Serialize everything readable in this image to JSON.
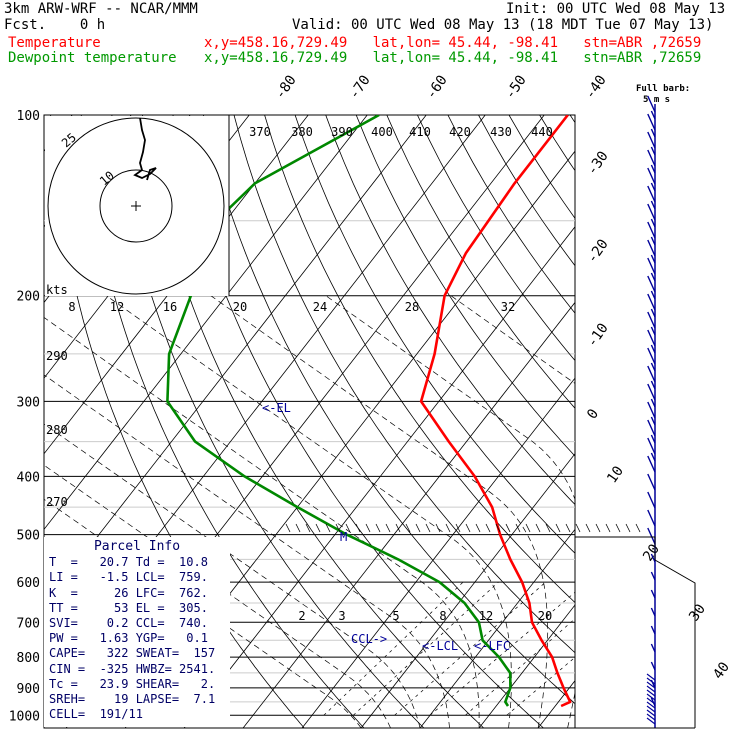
{
  "header": {
    "model": "3km ARW-WRF -- NCAR/MMM",
    "fcst": "Fcst.    0 h",
    "init": "Init: 00 UTC Wed 08 May 13",
    "valid": "Valid: 00 UTC Wed 08 May 13 (18 MDT Tue 07 May 13)",
    "temp_label": "Temperature",
    "dew_label": "Dewpoint temperature",
    "temp_loc": "x,y=458.16,729.49   lat,lon= 45.44, -98.41   stn=ABR ,72659",
    "dew_loc": "x,y=458.16,729.49   lat,lon= 45.44, -98.41   stn=ABR ,72659",
    "full_barb": "Full barb:",
    "full_barb_units": "5 m s"
  },
  "colors": {
    "temperature": "#ff0000",
    "dewpoint": "#008800",
    "annotation": "#000099",
    "theta_e": "#000000"
  },
  "chart_data": {
    "type": "line",
    "title": "Skew-T log-P sounding",
    "pressure_levels": [
      "100",
      "200",
      "300",
      "400",
      "500",
      "600",
      "700",
      "800",
      "900",
      "1000"
    ],
    "isotherm_labels": [
      "-80",
      "-70",
      "-60",
      "-50",
      "-40",
      "-30",
      "-20",
      "-10",
      "0",
      "10",
      "20",
      "30",
      "40"
    ],
    "theta_e_labels": [
      "370",
      "380",
      "390",
      "400",
      "410",
      "420",
      "430",
      "440"
    ],
    "left_theta_labels": [
      "290",
      "280",
      "270"
    ],
    "mixing_ratio_labels": [
      "2",
      "3",
      "5",
      "8",
      "12",
      "20"
    ],
    "hodograph": {
      "speed_label": "kts",
      "ring_labels": [
        "25",
        "10"
      ],
      "speed_ticks": [
        "8",
        "12",
        "16",
        "20",
        "24",
        "28",
        "32"
      ]
    },
    "annotations": {
      "el": "<-EL",
      "lcl": "<-LCL",
      "lfc": "<-LFC",
      "ccl": "CCL->",
      "m": "M"
    },
    "series": [
      {
        "name": "Temperature",
        "points": [
          [
            100,
            -56
          ],
          [
            130,
            -56
          ],
          [
            170,
            -55
          ],
          [
            200,
            -53
          ],
          [
            250,
            -47
          ],
          [
            300,
            -43
          ],
          [
            350,
            -33
          ],
          [
            400,
            -24
          ],
          [
            450,
            -17
          ],
          [
            500,
            -12
          ],
          [
            550,
            -7
          ],
          [
            600,
            -2
          ],
          [
            650,
            2
          ],
          [
            700,
            5
          ],
          [
            750,
            9
          ],
          [
            800,
            13
          ],
          [
            850,
            16
          ],
          [
            900,
            19
          ],
          [
            950,
            22
          ],
          [
            965,
            21
          ]
        ]
      },
      {
        "name": "Dewpoint temperature",
        "points": [
          [
            100,
            -88
          ],
          [
            130,
            -100
          ],
          [
            170,
            -103
          ],
          [
            200,
            -96
          ],
          [
            250,
            -92
          ],
          [
            300,
            -86
          ],
          [
            350,
            -76
          ],
          [
            400,
            -63
          ],
          [
            450,
            -50
          ],
          [
            500,
            -38
          ],
          [
            550,
            -26
          ],
          [
            600,
            -16
          ],
          [
            650,
            -9
          ],
          [
            700,
            -4
          ],
          [
            750,
            -1
          ],
          [
            800,
            4
          ],
          [
            850,
            8
          ],
          [
            900,
            10
          ],
          [
            950,
            11
          ],
          [
            965,
            12
          ]
        ]
      }
    ],
    "ylim": [
      1000,
      100
    ],
    "xlim": [
      -40,
      50
    ]
  },
  "parcel": {
    "title": "Parcel Info",
    "rows": [
      "T  =   20.7 Td =  10.8",
      "LI =   -1.5 LCL=  759.",
      "K  =     26 LFC=  762.",
      "TT =     53 EL =  305.",
      "SVI=    0.2 CCL=  740.",
      "PW =   1.63 YGP=   0.1",
      "CAPE=   322 SWEAT=  157",
      "CIN =  -325 HWBZ= 2541.",
      "Tc =   23.9 SHEAR=   2.",
      "SREH=    19 LAPSE=  7.1",
      "CELL=  191/11"
    ]
  }
}
